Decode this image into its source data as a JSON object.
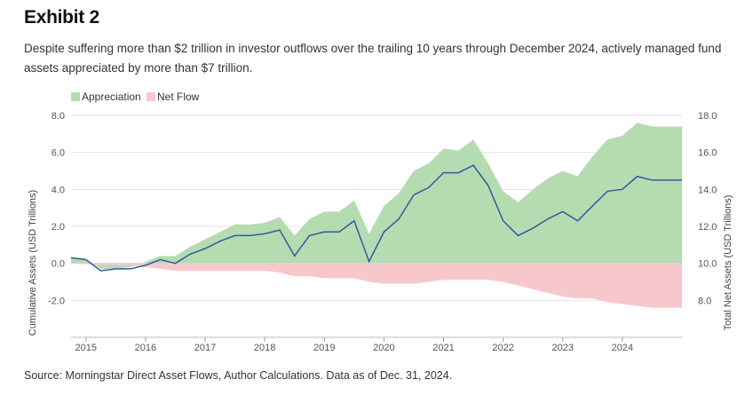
{
  "header": {
    "title": "Exhibit 2",
    "subtitle": "Despite suffering more than $2 trillion in investor outflows over the trailing 10 years through December 2024, actively managed fund assets appreciated by more than $7 trillion."
  },
  "footer": {
    "source": "Source: Morningstar Direct Asset Flows, Author Calculations. Data as of Dec. 31, 2024."
  },
  "chart_data": {
    "type": "area",
    "x_ticks": [
      "2015",
      "2016",
      "2017",
      "2018",
      "2019",
      "2020",
      "2021",
      "2022",
      "2023",
      "2024"
    ],
    "x_range": [
      2014.75,
      2025.0
    ],
    "ylabel_left": "Cumulative Assets (USD Trillions)",
    "ylabel_right": "Total Net Assets (USD Trillions)",
    "ylim_left": [
      -4.0,
      8.0
    ],
    "yticks_left": [
      "8.0",
      "6.0",
      "4.0",
      "2.0",
      "0.0",
      "-2.0"
    ],
    "ylim_right": [
      6.0,
      18.0
    ],
    "yticks_right": [
      "18.0",
      "16.0",
      "14.0",
      "12.0",
      "10.0",
      "8.0"
    ],
    "grid": true,
    "legend_position": "top-left",
    "colors": {
      "appreciation": "#b5dcb1",
      "net_flow": "#f7c8cb",
      "total": "#2d5c9e",
      "grid": "#e3e3e3"
    },
    "series": [
      {
        "name": "Appreciation",
        "kind": "area",
        "x": [
          2014.75,
          2015.0,
          2015.25,
          2015.5,
          2015.75,
          2016.0,
          2016.25,
          2016.5,
          2016.75,
          2017.0,
          2017.25,
          2017.5,
          2017.75,
          2018.0,
          2018.25,
          2018.5,
          2018.75,
          2019.0,
          2019.25,
          2019.5,
          2019.75,
          2020.0,
          2020.25,
          2020.5,
          2020.75,
          2021.0,
          2021.25,
          2021.5,
          2021.75,
          2022.0,
          2022.25,
          2022.5,
          2022.75,
          2023.0,
          2023.25,
          2023.5,
          2023.75,
          2024.0,
          2024.25,
          2024.5,
          2024.75,
          2025.0
        ],
        "values": [
          0.3,
          0.2,
          -0.3,
          -0.3,
          -0.2,
          0.1,
          0.4,
          0.4,
          0.9,
          1.3,
          1.7,
          2.1,
          2.1,
          2.2,
          2.5,
          1.5,
          2.4,
          2.8,
          2.8,
          3.4,
          1.6,
          3.1,
          3.8,
          5.0,
          5.4,
          6.2,
          6.1,
          6.7,
          5.4,
          3.9,
          3.3,
          4.0,
          4.6,
          5.0,
          4.7,
          5.8,
          6.7,
          6.9,
          7.6,
          7.4,
          7.4,
          7.4
        ]
      },
      {
        "name": "Net Flow",
        "kind": "area",
        "x": [
          2014.75,
          2015.0,
          2015.25,
          2015.5,
          2015.75,
          2016.0,
          2016.25,
          2016.5,
          2016.75,
          2017.0,
          2017.25,
          2017.5,
          2017.75,
          2018.0,
          2018.25,
          2018.5,
          2018.75,
          2019.0,
          2019.25,
          2019.5,
          2019.75,
          2020.0,
          2020.25,
          2020.5,
          2020.75,
          2021.0,
          2021.25,
          2021.5,
          2021.75,
          2022.0,
          2022.25,
          2022.5,
          2022.75,
          2023.0,
          2023.25,
          2023.5,
          2023.75,
          2024.0,
          2024.25,
          2024.5,
          2024.75,
          2025.0
        ],
        "values": [
          0.0,
          -0.05,
          -0.1,
          -0.1,
          -0.1,
          -0.2,
          -0.3,
          -0.4,
          -0.4,
          -0.4,
          -0.4,
          -0.4,
          -0.4,
          -0.4,
          -0.5,
          -0.7,
          -0.7,
          -0.8,
          -0.8,
          -0.8,
          -1.0,
          -1.1,
          -1.1,
          -1.1,
          -1.0,
          -0.9,
          -0.9,
          -0.9,
          -0.9,
          -1.0,
          -1.2,
          -1.4,
          -1.6,
          -1.8,
          -1.9,
          -1.9,
          -2.1,
          -2.2,
          -2.3,
          -2.4,
          -2.4,
          -2.4
        ]
      },
      {
        "name": "Total Net Assets",
        "kind": "line",
        "axis": "right",
        "x": [
          2014.75,
          2015.0,
          2015.25,
          2015.5,
          2015.75,
          2016.0,
          2016.25,
          2016.5,
          2016.75,
          2017.0,
          2017.25,
          2017.5,
          2017.75,
          2018.0,
          2018.25,
          2018.5,
          2018.75,
          2019.0,
          2019.25,
          2019.5,
          2019.75,
          2020.0,
          2020.25,
          2020.5,
          2020.75,
          2021.0,
          2021.25,
          2021.5,
          2021.75,
          2022.0,
          2022.25,
          2022.5,
          2022.75,
          2023.0,
          2023.25,
          2023.5,
          2023.75,
          2024.0,
          2024.25,
          2024.5,
          2024.75,
          2025.0
        ],
        "values": [
          10.3,
          10.2,
          9.6,
          9.7,
          9.7,
          9.9,
          10.2,
          10.0,
          10.5,
          10.8,
          11.2,
          11.5,
          11.5,
          11.6,
          11.8,
          10.4,
          11.5,
          11.7,
          11.7,
          12.3,
          10.1,
          11.7,
          12.4,
          13.7,
          14.1,
          14.9,
          14.9,
          15.3,
          14.2,
          12.3,
          11.5,
          11.9,
          12.4,
          12.8,
          12.3,
          13.1,
          13.9,
          14.0,
          14.7,
          14.5,
          14.5,
          14.5
        ]
      }
    ]
  }
}
